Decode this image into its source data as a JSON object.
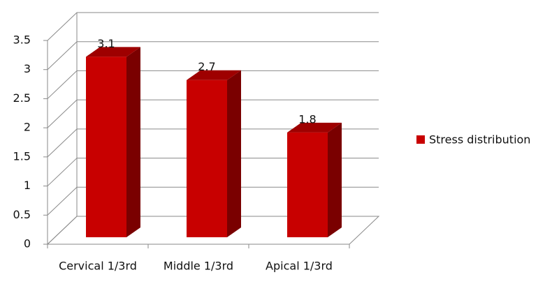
{
  "chart_data": {
    "type": "bar3d",
    "categories": [
      "Cervical 1/3rd",
      "Middle 1/3rd",
      "Apical 1/3rd"
    ],
    "series": [
      {
        "name": "Stress distribution",
        "color": "#c80000",
        "values": [
          3.1,
          2.7,
          1.8
        ]
      }
    ],
    "ylim": [
      0,
      3.5
    ],
    "yticks": [
      0,
      0.5,
      1,
      1.5,
      2,
      2.5,
      3,
      3.5
    ],
    "grid": true,
    "legend": "right"
  }
}
